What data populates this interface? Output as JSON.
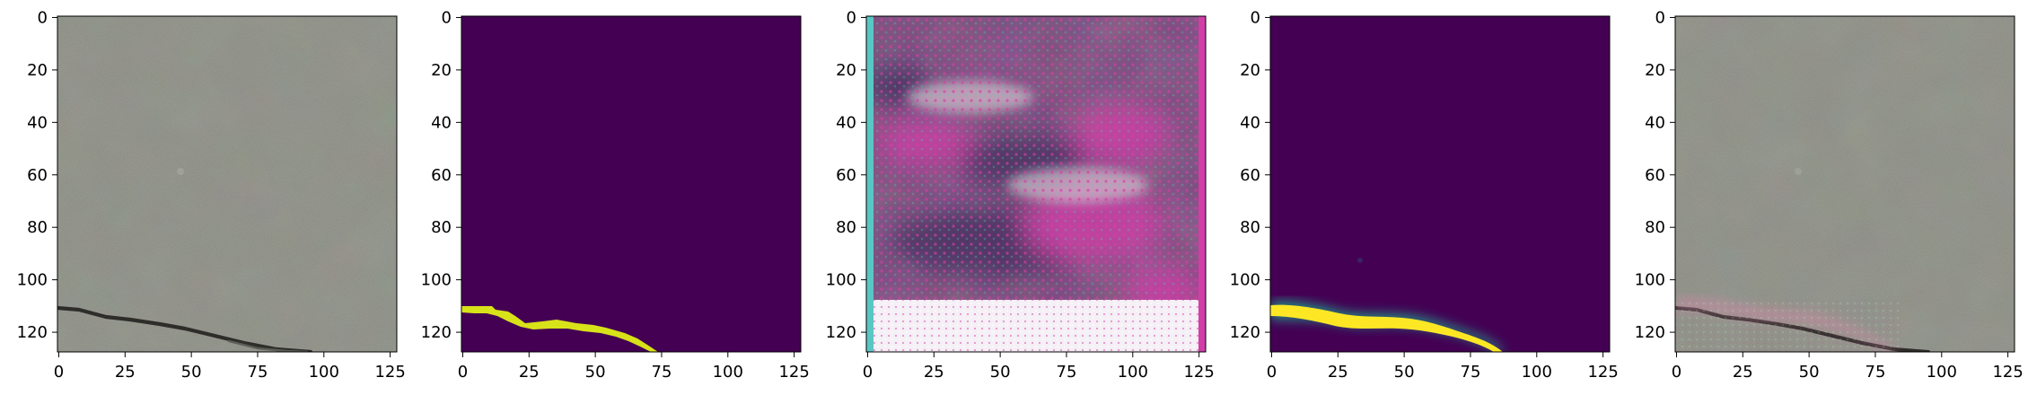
{
  "panels": [
    {
      "id": "panel-1",
      "content": "pavement-photo",
      "colors": {
        "bg": "#8b8d83",
        "dark": "#5c5d57",
        "light": "#a7a99f",
        "crack": "#2f2d2a"
      },
      "x_tick_labels": [
        "0",
        "25",
        "50",
        "75",
        "100",
        "125"
      ],
      "y_tick_labels": [
        "0",
        "20",
        "40",
        "60",
        "80",
        "100",
        "120"
      ]
    },
    {
      "id": "panel-2",
      "content": "binary-mask",
      "colors": {
        "bg": "#440154",
        "mask": "#d8e219"
      },
      "x_tick_labels": [
        "0",
        "25",
        "50",
        "75",
        "100",
        "125"
      ],
      "y_tick_labels": [
        "0",
        "20",
        "40",
        "60",
        "80",
        "100",
        "120"
      ]
    },
    {
      "id": "panel-3",
      "content": "noisy-reconstruction",
      "colors": {
        "base": "#7d4d7f",
        "magenta": "#d23ea7",
        "deep": "#3f2d5d",
        "light": "#d7c7d2",
        "cyan": "#59c7c3",
        "white": "#f5f0f6"
      },
      "x_tick_labels": [
        "0",
        "25",
        "50",
        "75",
        "100",
        "125"
      ],
      "y_tick_labels": [
        "0",
        "20",
        "40",
        "60",
        "80",
        "100",
        "120"
      ]
    },
    {
      "id": "panel-4",
      "content": "predicted-mask",
      "colors": {
        "bg": "#440154",
        "edge": "#1fa187",
        "core": "#fde725"
      },
      "x_tick_labels": [
        "0",
        "25",
        "50",
        "75",
        "100",
        "125"
      ],
      "y_tick_labels": [
        "0",
        "20",
        "40",
        "60",
        "80",
        "100",
        "120"
      ]
    },
    {
      "id": "panel-5",
      "content": "overlay-photo",
      "colors": {
        "bg": "#8b8d83",
        "dark": "#5c5d57",
        "light": "#a7a99f",
        "crack": "#2f2d2a",
        "overlay": "#d48ba9"
      },
      "x_tick_labels": [
        "0",
        "25",
        "50",
        "75",
        "100",
        "125"
      ],
      "y_tick_labels": [
        "0",
        "20",
        "40",
        "60",
        "80",
        "100",
        "120"
      ]
    }
  ]
}
